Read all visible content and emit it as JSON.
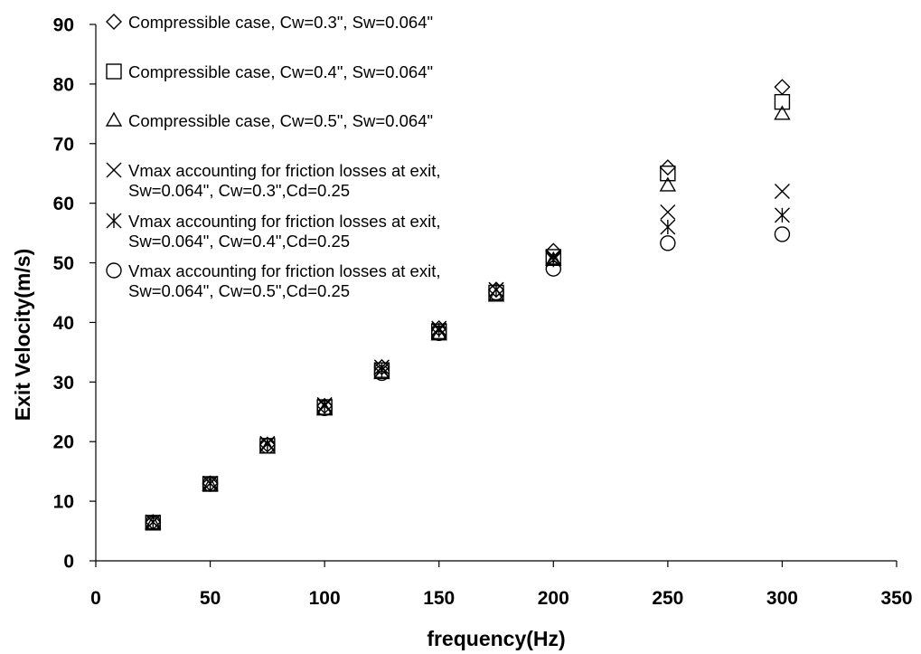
{
  "chart_data": {
    "type": "scatter",
    "title": "",
    "xlabel": "frequency(Hz)",
    "ylabel": "Exit Velocity(m/s)",
    "xlim": [
      0,
      350
    ],
    "ylim": [
      0,
      90
    ],
    "xticks": [
      "0",
      "50",
      "100",
      "150",
      "200",
      "250",
      "300",
      "350"
    ],
    "yticks": [
      "0",
      "10",
      "20",
      "30",
      "40",
      "50",
      "60",
      "70",
      "80",
      "90"
    ],
    "grid": false,
    "legend_position": "top-left",
    "series": [
      {
        "name": "Compressible case, Cw=0.3\", Sw=0.064\"",
        "legend_lines": [
          "Compressible case, Cw=0.3\", Sw=0.064\""
        ],
        "marker": "diamond-icon",
        "x": [
          25,
          50,
          75,
          100,
          125,
          150,
          175,
          200,
          250,
          300
        ],
        "y": [
          6.5,
          13,
          19.5,
          26,
          32.5,
          39,
          45.5,
          52,
          66,
          79.5
        ]
      },
      {
        "name": "Compressible case, Cw=0.4\", Sw=0.064\"",
        "legend_lines": [
          "Compressible case, Cw=0.4\", Sw=0.064\""
        ],
        "marker": "square-icon",
        "x": [
          25,
          50,
          75,
          100,
          125,
          150,
          175,
          200,
          250,
          300
        ],
        "y": [
          6.4,
          12.9,
          19.3,
          25.8,
          32,
          38.5,
          45,
          51,
          65,
          77
        ]
      },
      {
        "name": "Compressible case, Cw=0.5\", Sw=0.064\"",
        "legend_lines": [
          "Compressible case, Cw=0.5\", Sw=0.064\""
        ],
        "marker": "triangle-icon",
        "x": [
          25,
          50,
          75,
          100,
          125,
          150,
          175,
          200,
          250,
          300
        ],
        "y": [
          6.3,
          12.7,
          19,
          25.4,
          31.5,
          38,
          44.5,
          50.5,
          63,
          75
        ]
      },
      {
        "name": "Vmax accounting for friction losses at exit, Sw=0.064\", Cw=0.3\",Cd=0.25",
        "legend_lines": [
          "Vmax accounting for friction losses at exit,",
          "Sw=0.064\", Cw=0.3\",Cd=0.25"
        ],
        "marker": "x-cross-icon",
        "x": [
          25,
          50,
          75,
          100,
          125,
          150,
          175,
          200,
          250,
          300
        ],
        "y": [
          6.5,
          13,
          19.7,
          26.2,
          32.5,
          39,
          45.5,
          51,
          58.5,
          62
        ]
      },
      {
        "name": "Vmax accounting for friction losses at exit, Sw=0.064\", Cw=0.4\",Cd=0.25",
        "legend_lines": [
          "Vmax accounting for friction losses at exit,",
          "Sw=0.064\", Cw=0.4\",Cd=0.25"
        ],
        "marker": "asterisk-icon",
        "x": [
          25,
          50,
          75,
          100,
          125,
          150,
          175,
          200,
          250,
          300
        ],
        "y": [
          6.5,
          13,
          19.6,
          26,
          32,
          38.7,
          45.5,
          50.5,
          56,
          58
        ]
      },
      {
        "name": "Vmax accounting for friction losses at exit, Sw=0.064\", Cw=0.5\",Cd=0.25",
        "legend_lines": [
          "Vmax accounting for friction losses at exit,",
          "Sw=0.064\", Cw=0.5\",Cd=0.25"
        ],
        "marker": "circle-icon",
        "x": [
          25,
          50,
          75,
          100,
          125,
          150,
          175,
          200,
          250,
          300
        ],
        "y": [
          6.4,
          12.9,
          19.3,
          25.6,
          31.5,
          38.2,
          45,
          49,
          53.3,
          54.8
        ]
      }
    ]
  }
}
